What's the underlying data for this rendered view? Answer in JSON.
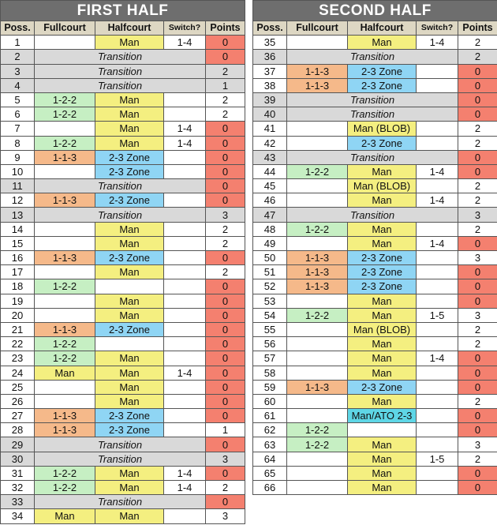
{
  "colors": {
    "title_bg": "#6e6e6e",
    "header_bg": "#ddd7c3",
    "transition": "#d9d9d9",
    "zero_points": "#f4806f",
    "1-2-2": "#c6efc3",
    "1-1-3": "#f5b98a",
    "Man": "#f4ef80",
    "Man (BLOB)": "#f4ef80",
    "2-3 Zone": "#8fd5f4",
    "Man/ATO 2-3": "#5ed6e6"
  },
  "headers": {
    "poss": "Poss.",
    "fullcourt": "Fullcourt",
    "halfcourt": "Halfcourt",
    "switch": "Switch?",
    "points": "Points"
  },
  "transition_label": "Transition",
  "halves": [
    {
      "id": "left",
      "title": "FIRST HALF",
      "rows": [
        [
          "1",
          "",
          "Man",
          "1-4",
          "0"
        ],
        [
          "2",
          "T",
          "",
          "",
          "0"
        ],
        [
          "3",
          "T",
          "",
          "",
          "2"
        ],
        [
          "4",
          "T",
          "",
          "",
          "1"
        ],
        [
          "5",
          "1-2-2",
          "Man",
          "",
          "2"
        ],
        [
          "6",
          "1-2-2",
          "Man",
          "",
          "2"
        ],
        [
          "7",
          "",
          "Man",
          "1-4",
          "0"
        ],
        [
          "8",
          "1-2-2",
          "Man",
          "1-4",
          "0"
        ],
        [
          "9",
          "1-1-3",
          "2-3 Zone",
          "",
          "0"
        ],
        [
          "10",
          "",
          "2-3 Zone",
          "",
          "0"
        ],
        [
          "11",
          "T",
          "",
          "",
          "0"
        ],
        [
          "12",
          "1-1-3",
          "2-3 Zone",
          "",
          "0"
        ],
        [
          "13",
          "T",
          "",
          "",
          "3"
        ],
        [
          "14",
          "",
          "Man",
          "",
          "2"
        ],
        [
          "15",
          "",
          "Man",
          "",
          "2"
        ],
        [
          "16",
          "1-1-3",
          "2-3 Zone",
          "",
          "0"
        ],
        [
          "17",
          "",
          "Man",
          "",
          "2"
        ],
        [
          "18",
          "1-2-2",
          "",
          "",
          "0"
        ],
        [
          "19",
          "",
          "Man",
          "",
          "0"
        ],
        [
          "20",
          "",
          "Man",
          "",
          "0"
        ],
        [
          "21",
          "1-1-3",
          "2-3 Zone",
          "",
          "0"
        ],
        [
          "22",
          "1-2-2",
          "",
          "",
          "0"
        ],
        [
          "23",
          "1-2-2",
          "Man",
          "",
          "0"
        ],
        [
          "24",
          "Man",
          "Man",
          "1-4",
          "0"
        ],
        [
          "25",
          "",
          "Man",
          "",
          "0"
        ],
        [
          "26",
          "",
          "Man",
          "",
          "0"
        ],
        [
          "27",
          "1-1-3",
          "2-3 Zone",
          "",
          "0"
        ],
        [
          "28",
          "1-1-3",
          "2-3 Zone",
          "",
          "1"
        ],
        [
          "29",
          "T",
          "",
          "",
          "0"
        ],
        [
          "30",
          "T",
          "",
          "",
          "3"
        ],
        [
          "31",
          "1-2-2",
          "Man",
          "1-4",
          "0"
        ],
        [
          "32",
          "1-2-2",
          "Man",
          "1-4",
          "2"
        ],
        [
          "33",
          "T",
          "",
          "",
          "0"
        ],
        [
          "34",
          "Man",
          "Man",
          "",
          "3"
        ]
      ]
    },
    {
      "id": "right",
      "title": "SECOND HALF",
      "rows": [
        [
          "35",
          "",
          "Man",
          "1-4",
          "2"
        ],
        [
          "36",
          "T",
          "",
          "",
          "2"
        ],
        [
          "37",
          "1-1-3",
          "2-3 Zone",
          "",
          "0"
        ],
        [
          "38",
          "1-1-3",
          "2-3 Zone",
          "",
          "0"
        ],
        [
          "39",
          "T",
          "",
          "",
          "0"
        ],
        [
          "40",
          "T",
          "",
          "",
          "0"
        ],
        [
          "41",
          "",
          "Man (BLOB)",
          "",
          "2"
        ],
        [
          "42",
          "",
          "2-3 Zone",
          "",
          "2"
        ],
        [
          "43",
          "T",
          "",
          "",
          "0"
        ],
        [
          "44",
          "1-2-2",
          "Man",
          "1-4",
          "0"
        ],
        [
          "45",
          "",
          "Man (BLOB)",
          "",
          "2"
        ],
        [
          "46",
          "",
          "Man",
          "1-4",
          "2"
        ],
        [
          "47",
          "T",
          "",
          "",
          "3"
        ],
        [
          "48",
          "1-2-2",
          "Man",
          "",
          "2"
        ],
        [
          "49",
          "",
          "Man",
          "1-4",
          "0"
        ],
        [
          "50",
          "1-1-3",
          "2-3 Zone",
          "",
          "3"
        ],
        [
          "51",
          "1-1-3",
          "2-3 Zone",
          "",
          "0"
        ],
        [
          "52",
          "1-1-3",
          "2-3 Zone",
          "",
          "0"
        ],
        [
          "53",
          "",
          "Man",
          "",
          "0"
        ],
        [
          "54",
          "1-2-2",
          "Man",
          "1-5",
          "3"
        ],
        [
          "55",
          "",
          "Man (BLOB)",
          "",
          "2"
        ],
        [
          "56",
          "",
          "Man",
          "",
          "2"
        ],
        [
          "57",
          "",
          "Man",
          "1-4",
          "0"
        ],
        [
          "58",
          "",
          "Man",
          "",
          "0"
        ],
        [
          "59",
          "1-1-3",
          "2-3 Zone",
          "",
          "0"
        ],
        [
          "60",
          "",
          "Man",
          "",
          "2"
        ],
        [
          "61",
          "",
          "Man/ATO 2-3",
          "",
          "0"
        ],
        [
          "62",
          "1-2-2",
          "",
          "",
          "0"
        ],
        [
          "63",
          "1-2-2",
          "Man",
          "",
          "3"
        ],
        [
          "64",
          "",
          "Man",
          "1-5",
          "2"
        ],
        [
          "65",
          "",
          "Man",
          "",
          "0"
        ],
        [
          "66",
          "",
          "Man",
          "",
          "0"
        ]
      ]
    }
  ]
}
